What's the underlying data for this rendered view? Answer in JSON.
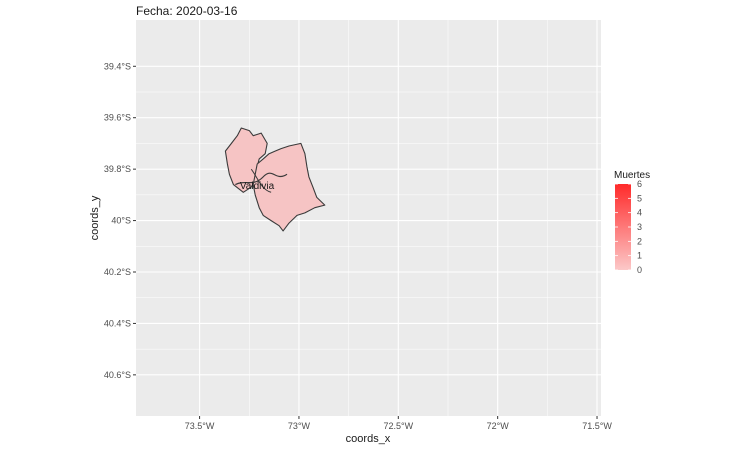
{
  "title": "Fecha: 2020-03-16",
  "x_axis_label": "coords_x",
  "y_axis_label": "coords_y",
  "x_ticks": [
    "73.5°W",
    "73°W",
    "72.5°W",
    "72°W",
    "71.5°W"
  ],
  "y_ticks": [
    "39.4°S",
    "39.6°S",
    "39.8°S",
    "40°S",
    "40.2°S",
    "40.4°S",
    "40.6°S"
  ],
  "region_label": "Valdivia",
  "legend": {
    "title": "Muertes",
    "labels": [
      "6",
      "5",
      "4",
      "3",
      "2",
      "1",
      "0"
    ],
    "color_low": "#fcc8c8",
    "color_high": "#ff2a2a"
  },
  "colors": {
    "panel_background": "#ebebeb",
    "grid_line": "#ffffff",
    "region_fill": "#f6c4c4",
    "region_stroke": "#3a3a3a"
  },
  "chart_data": {
    "type": "map",
    "title": "Fecha: 2020-03-16",
    "xlabel": "coords_x",
    "ylabel": "coords_y",
    "xlim": [
      -73.82,
      -71.48
    ],
    "ylim": [
      -40.76,
      -39.22
    ],
    "x_ticks": [
      -73.5,
      -73.0,
      -72.5,
      -72.0,
      -71.5
    ],
    "y_ticks": [
      -39.4,
      -39.6,
      -39.8,
      -40.0,
      -40.2,
      -40.4,
      -40.6
    ],
    "grid": true,
    "legend_position": "right",
    "fill_scale": {
      "name": "Muertes",
      "min": 0,
      "max": 6
    },
    "regions": [
      {
        "name": "Valdivia",
        "value": 0,
        "polygons": [
          [
            [
              -73.29,
              -39.64
            ],
            [
              -73.25,
              -39.65
            ],
            [
              -73.23,
              -39.67
            ],
            [
              -73.19,
              -39.66
            ],
            [
              -73.16,
              -39.7
            ],
            [
              -73.17,
              -39.74
            ],
            [
              -73.2,
              -39.76
            ],
            [
              -73.21,
              -39.79
            ],
            [
              -73.22,
              -39.84
            ],
            [
              -73.24,
              -39.87
            ],
            [
              -73.28,
              -39.89
            ],
            [
              -73.33,
              -39.86
            ],
            [
              -73.35,
              -39.82
            ],
            [
              -73.36,
              -39.78
            ],
            [
              -73.37,
              -39.73
            ],
            [
              -73.34,
              -39.7
            ],
            [
              -73.31,
              -39.67
            ]
          ],
          [
            [
              -73.15,
              -39.74
            ],
            [
              -73.12,
              -39.73
            ],
            [
              -73.09,
              -39.72
            ],
            [
              -73.05,
              -39.71
            ],
            [
              -72.99,
              -39.7
            ],
            [
              -72.97,
              -39.74
            ],
            [
              -72.96,
              -39.79
            ],
            [
              -72.95,
              -39.83
            ],
            [
              -72.93,
              -39.87
            ],
            [
              -72.91,
              -39.91
            ],
            [
              -72.87,
              -39.94
            ],
            [
              -72.92,
              -39.95
            ],
            [
              -72.97,
              -39.97
            ],
            [
              -73.01,
              -39.98
            ],
            [
              -73.05,
              -40.01
            ],
            [
              -73.08,
              -40.04
            ],
            [
              -73.1,
              -40.02
            ],
            [
              -73.14,
              -40.0
            ],
            [
              -73.18,
              -39.98
            ],
            [
              -73.2,
              -39.95
            ],
            [
              -73.22,
              -39.9
            ],
            [
              -73.23,
              -39.86
            ],
            [
              -73.22,
              -39.82
            ],
            [
              -73.21,
              -39.78
            ],
            [
              -73.18,
              -39.76
            ]
          ]
        ]
      }
    ]
  }
}
